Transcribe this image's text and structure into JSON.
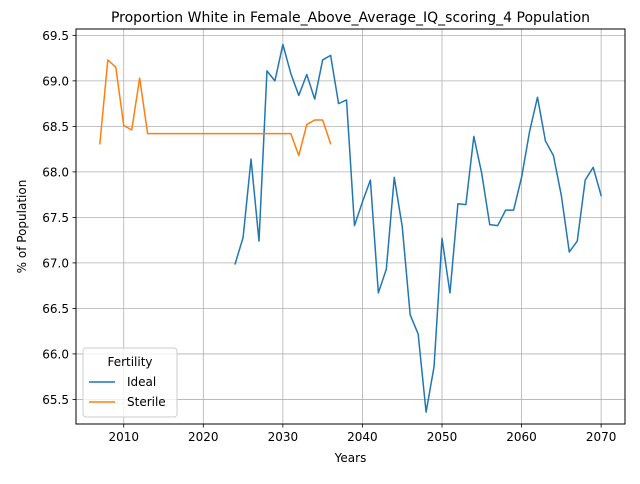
{
  "chart_data": {
    "type": "line",
    "title": "Proportion White in Female_Above_Average_IQ_scoring_4 Population",
    "xlabel": "Years",
    "ylabel": "% of Population",
    "xlim": [
      2004,
      2073
    ],
    "ylim": [
      65.23,
      69.57
    ],
    "xticks": [
      2010,
      2020,
      2030,
      2040,
      2050,
      2060,
      2070
    ],
    "yticks": [
      65.5,
      66.0,
      66.5,
      67.0,
      67.5,
      68.0,
      68.5,
      69.0,
      69.5
    ],
    "ytick_labels": [
      "65.5",
      "66.0",
      "66.5",
      "67.0",
      "67.5",
      "68.0",
      "68.5",
      "69.0",
      "69.5"
    ],
    "grid": true,
    "legend": {
      "title": "Fertility",
      "position": "lower-left"
    },
    "series": [
      {
        "name": "Ideal",
        "color": "#1f77b4",
        "x": [
          2024,
          2025,
          2026,
          2027,
          2028,
          2029,
          2030,
          2031,
          2032,
          2033,
          2034,
          2035,
          2036,
          2037,
          2038,
          2039,
          2040,
          2041,
          2042,
          2043,
          2044,
          2045,
          2046,
          2047,
          2048,
          2049,
          2050,
          2051,
          2052,
          2053,
          2054,
          2055,
          2056,
          2057,
          2058,
          2059,
          2060,
          2061,
          2062,
          2063,
          2064,
          2065,
          2066,
          2067,
          2068,
          2069,
          2070
        ],
        "values": [
          66.99,
          67.28,
          68.14,
          67.24,
          69.11,
          69.0,
          69.4,
          69.08,
          68.84,
          69.07,
          68.8,
          69.23,
          69.28,
          68.75,
          68.79,
          67.41,
          67.67,
          67.91,
          66.67,
          66.93,
          67.94,
          67.4,
          66.43,
          66.22,
          65.36,
          65.86,
          67.27,
          66.67,
          67.65,
          67.64,
          68.39,
          67.98,
          67.42,
          67.41,
          67.58,
          67.58,
          67.94,
          68.44,
          68.82,
          68.34,
          68.18,
          67.74,
          67.12,
          67.24,
          67.91,
          68.05,
          67.74
        ]
      },
      {
        "name": "Sterile",
        "color": "#ff7f0e",
        "x": [
          2007,
          2008,
          2009,
          2010,
          2011,
          2012,
          2013,
          2014,
          2015,
          2016,
          2017,
          2018,
          2019,
          2020,
          2021,
          2022,
          2023,
          2024,
          2025,
          2026,
          2027,
          2028,
          2029,
          2030,
          2031,
          2032,
          2033,
          2034,
          2035,
          2036
        ],
        "values": [
          68.31,
          69.23,
          69.15,
          68.51,
          68.46,
          69.03,
          68.42,
          68.42,
          68.42,
          68.42,
          68.42,
          68.42,
          68.42,
          68.42,
          68.42,
          68.42,
          68.42,
          68.42,
          68.42,
          68.42,
          68.42,
          68.42,
          68.42,
          68.42,
          68.42,
          68.18,
          68.52,
          68.57,
          68.57,
          68.31
        ]
      }
    ]
  }
}
